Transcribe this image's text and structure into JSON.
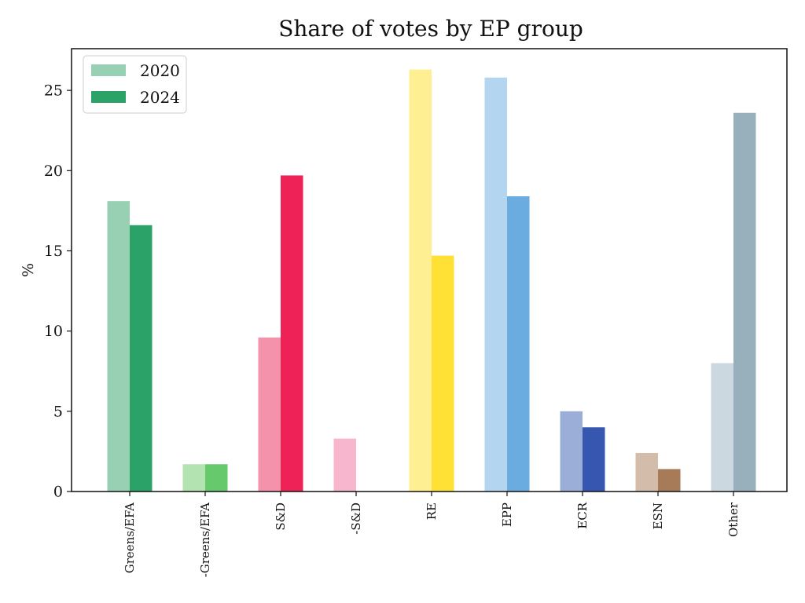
{
  "chart_data": {
    "type": "bar",
    "title": "Share of votes by EP group",
    "xlabel": "",
    "ylabel": "%",
    "ylim": [
      0,
      27.6
    ],
    "yticks": [
      0,
      5,
      10,
      15,
      20,
      25
    ],
    "grid": false,
    "legend_position": "top-left",
    "categories": [
      "Greens/EFA",
      "-Greens/EFA",
      "S&D",
      "-S&D",
      "RE",
      "EPP",
      "ECR",
      "ESN",
      "Other"
    ],
    "series": [
      {
        "name": "2020",
        "values": [
          18.1,
          1.7,
          9.6,
          3.3,
          26.3,
          25.8,
          5.0,
          2.4,
          8.0
        ],
        "colors": [
          "#98d0b4",
          "#b3e3b1",
          "#f592ab",
          "#f8b6ce",
          "#feef93",
          "#b3d5f0",
          "#9aaed8",
          "#d4bcab",
          "#ccd8df"
        ],
        "legend_color": "#98d0b4"
      },
      {
        "name": "2024",
        "values": [
          16.6,
          1.7,
          19.7,
          0,
          14.7,
          18.4,
          4.0,
          1.4,
          23.6
        ],
        "colors": [
          "#2ba368",
          "#66c96b",
          "#ee2256",
          "#f8b6ce",
          "#ffe035",
          "#6aabe0",
          "#3756b0",
          "#a77a58",
          "#97b0bb"
        ],
        "legend_color": "#2ba368"
      }
    ]
  }
}
